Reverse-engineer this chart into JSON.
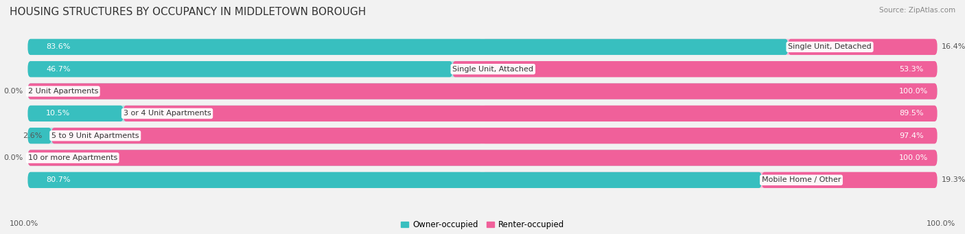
{
  "title": "HOUSING STRUCTURES BY OCCUPANCY IN MIDDLETOWN BOROUGH",
  "source": "Source: ZipAtlas.com",
  "categories": [
    "Single Unit, Detached",
    "Single Unit, Attached",
    "2 Unit Apartments",
    "3 or 4 Unit Apartments",
    "5 to 9 Unit Apartments",
    "10 or more Apartments",
    "Mobile Home / Other"
  ],
  "owner_pct": [
    83.6,
    46.7,
    0.0,
    10.5,
    2.6,
    0.0,
    80.7
  ],
  "renter_pct": [
    16.4,
    53.3,
    100.0,
    89.5,
    97.4,
    100.0,
    19.3
  ],
  "owner_color": "#38bfbf",
  "renter_color": "#f0609a",
  "owner_color_light": "#b2e4e4",
  "renter_color_light": "#f8c0d8",
  "row_bg_color": "#e8e8e8",
  "bg_color": "#f2f2f2",
  "title_fontsize": 11,
  "label_fontsize": 8.0,
  "source_fontsize": 7.5,
  "legend_fontsize": 8.5,
  "axis_label_left": "100.0%",
  "axis_label_right": "100.0%"
}
